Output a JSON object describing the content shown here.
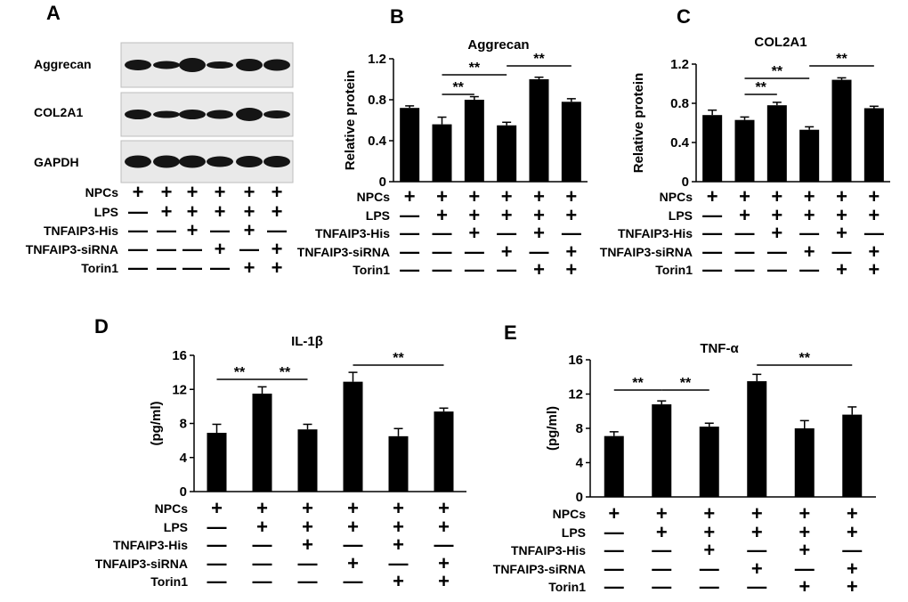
{
  "figure": {
    "conditions": [
      "NPCs",
      "LPS",
      "TNFAIP3-His",
      "TNFAIP3-siRNA",
      "Torin1"
    ],
    "symbols": {
      "plus": "+",
      "minus": "—"
    },
    "treatment_matrix": [
      [
        "+",
        "+",
        "+",
        "+",
        "+",
        "+"
      ],
      [
        "—",
        "+",
        "+",
        "+",
        "+",
        "+"
      ],
      [
        "—",
        "—",
        "+",
        "—",
        "+",
        "—"
      ],
      [
        "—",
        "—",
        "—",
        "+",
        "—",
        "+"
      ],
      [
        "—",
        "—",
        "—",
        "—",
        "+",
        "+"
      ]
    ]
  },
  "blot": {
    "panel_label": "A",
    "rows": [
      "Aggrecan",
      "COL2A1",
      "GAPDH"
    ]
  },
  "chart_data": [
    {
      "panel_label": "B",
      "type": "bar",
      "title": "Aggrecan",
      "ylabel": "Relative protein",
      "ylim": [
        0,
        1.2
      ],
      "yticks": [
        "0",
        "0.4",
        "0.8",
        "1.2"
      ],
      "values": [
        0.72,
        0.56,
        0.8,
        0.55,
        1.0,
        0.78
      ],
      "errors": [
        0.02,
        0.07,
        0.03,
        0.03,
        0.02,
        0.03
      ],
      "significance": [
        {
          "from": 1,
          "to": 2,
          "label": "**"
        },
        {
          "from": 1,
          "to": 3,
          "label": "**"
        },
        {
          "from": 3,
          "to": 5,
          "label": "**"
        }
      ]
    },
    {
      "panel_label": "C",
      "type": "bar",
      "title": "COL2A1",
      "ylabel": "Relative protein",
      "ylim": [
        0,
        1.2
      ],
      "yticks": [
        "0",
        "0.4",
        "0.8",
        "1.2"
      ],
      "values": [
        0.68,
        0.63,
        0.78,
        0.53,
        1.04,
        0.75
      ],
      "errors": [
        0.05,
        0.03,
        0.03,
        0.03,
        0.02,
        0.02
      ],
      "significance": [
        {
          "from": 1,
          "to": 2,
          "label": "**"
        },
        {
          "from": 1,
          "to": 3,
          "label": "**"
        },
        {
          "from": 3,
          "to": 5,
          "label": "**"
        }
      ]
    },
    {
      "panel_label": "D",
      "type": "bar",
      "title": "IL-1β",
      "ylabel": "(pg/ml)",
      "ylim": [
        0,
        16
      ],
      "yticks": [
        "0",
        "4",
        "8",
        "12",
        "16"
      ],
      "values": [
        6.9,
        11.5,
        7.3,
        12.9,
        6.5,
        9.4
      ],
      "errors": [
        1.0,
        0.8,
        0.6,
        1.1,
        0.9,
        0.4
      ],
      "significance": [
        {
          "from": 0,
          "to": 1,
          "label": "**"
        },
        {
          "from": 1,
          "to": 2,
          "label": "**"
        },
        {
          "from": 3,
          "to": 5,
          "label": "**"
        }
      ]
    },
    {
      "panel_label": "E",
      "type": "bar",
      "title": "TNF-α",
      "ylabel": "(pg/ml)",
      "ylim": [
        0,
        16
      ],
      "yticks": [
        "0",
        "4",
        "8",
        "12",
        "16"
      ],
      "values": [
        7.1,
        10.8,
        8.2,
        13.5,
        8.0,
        9.6
      ],
      "errors": [
        0.5,
        0.4,
        0.4,
        0.8,
        0.9,
        0.9
      ],
      "significance": [
        {
          "from": 0,
          "to": 1,
          "label": "**"
        },
        {
          "from": 1,
          "to": 2,
          "label": "**"
        },
        {
          "from": 3,
          "to": 5,
          "label": "**"
        }
      ]
    }
  ]
}
